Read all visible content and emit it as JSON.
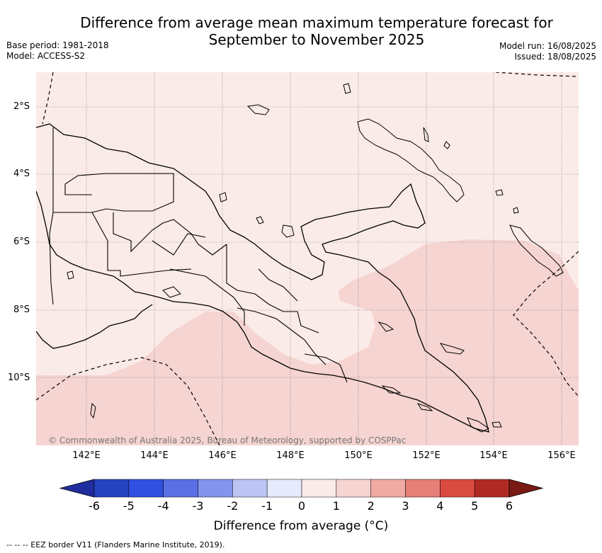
{
  "title_line1": "Difference from average mean maximum temperature forecast for",
  "title_line2": "September to November 2025",
  "left_info": {
    "base_period": "Base period: 1981-2018",
    "model": "Model: ACCESS-S2"
  },
  "right_info": {
    "model_run": "Model run: 16/08/2025",
    "issued": "Issued: 18/08/2025"
  },
  "lat_labels": [
    "2°S",
    "4°S",
    "6°S",
    "8°S",
    "10°S"
  ],
  "lon_labels": [
    "142°E",
    "144°E",
    "146°E",
    "148°E",
    "150°E",
    "152°E",
    "154°E",
    "156°E"
  ],
  "copyright": "© Commonwealth of Australia 2025, Bureau of Meteorology, supported by COSPPac",
  "colorbar": {
    "ticks": [
      "-6",
      "-5",
      "-4",
      "-3",
      "-2",
      "-1",
      "0",
      "1",
      "2",
      "3",
      "4",
      "5",
      "6"
    ],
    "colors": [
      "#1f2d9e",
      "#2443bf",
      "#3050e0",
      "#5a6fe4",
      "#8494ec",
      "#bcc4f4",
      "#e6ebfb",
      "#fbebe8",
      "#f5d4d1",
      "#efaaa4",
      "#e67f77",
      "#d94a3f",
      "#b02a23",
      "#7a1a14"
    ],
    "label": "Difference from average (°C)"
  },
  "legend_note": "-- -- -- EEZ border V11 (Flanders Marine Institute, 2019).",
  "shading": {
    "background": "#fbebe8",
    "shaded_region": "#f5d4d1"
  }
}
